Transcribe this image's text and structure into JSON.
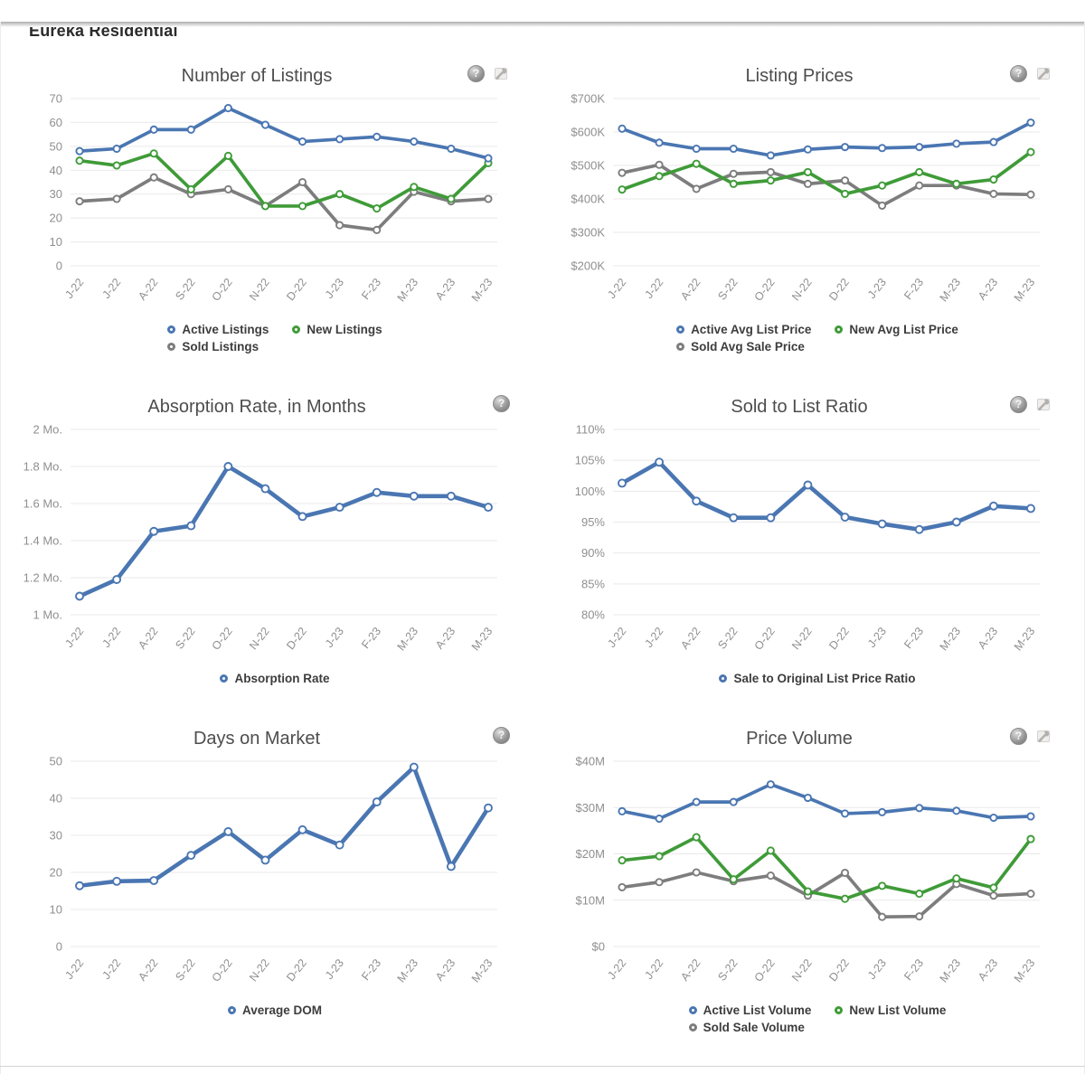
{
  "page": {
    "title": "Eureka Residential"
  },
  "icons": {
    "help_glyph": "?",
    "help_name": "help-icon",
    "tools_name": "tools-icon"
  },
  "colors": {
    "blue": "#4a76b2",
    "green": "#3f9b38",
    "gray": "#7d7d7d",
    "grid": "#e9e9e9",
    "tick_text": "#8f8f8f"
  },
  "chart_data": [
    {
      "type": "line",
      "title": "Number of Listings",
      "has_tools": true,
      "categories": [
        "J-22",
        "J-22",
        "A-22",
        "S-22",
        "O-22",
        "N-22",
        "D-22",
        "J-23",
        "F-23",
        "M-23",
        "A-23",
        "M-23"
      ],
      "ylim": [
        0,
        70
      ],
      "y_tick_values": [
        0,
        10,
        20,
        30,
        40,
        50,
        60,
        70
      ],
      "y_tick_labels": [
        "0",
        "10",
        "20",
        "30",
        "40",
        "50",
        "60",
        "70"
      ],
      "series": [
        {
          "name": "Active Listings",
          "color": "#4a76b2",
          "values": [
            48,
            49,
            57,
            57,
            66,
            59,
            52,
            53,
            54,
            52,
            49,
            45
          ]
        },
        {
          "name": "New Listings",
          "color": "#3f9b38",
          "values": [
            44,
            42,
            47,
            32,
            46,
            25,
            25,
            30,
            24,
            33,
            28,
            43
          ]
        },
        {
          "name": "Sold Listings",
          "color": "#7d7d7d",
          "values": [
            27,
            28,
            37,
            30,
            32,
            25,
            35,
            17,
            15,
            31,
            27,
            28
          ]
        }
      ]
    },
    {
      "type": "line",
      "title": "Listing Prices",
      "has_tools": true,
      "categories": [
        "J-22",
        "J-22",
        "A-22",
        "S-22",
        "O-22",
        "N-22",
        "D-22",
        "J-23",
        "F-23",
        "M-23",
        "A-23",
        "M-23"
      ],
      "ylim": [
        200,
        700
      ],
      "y_tick_values": [
        200,
        300,
        400,
        500,
        600,
        700
      ],
      "y_tick_labels": [
        "$200K",
        "$300K",
        "$400K",
        "$500K",
        "$600K",
        "$700K"
      ],
      "series": [
        {
          "name": "Active Avg List Price",
          "color": "#4a76b2",
          "values": [
            610,
            568,
            550,
            550,
            530,
            548,
            555,
            552,
            555,
            565,
            570,
            628
          ]
        },
        {
          "name": "New Avg List Price",
          "color": "#3f9b38",
          "values": [
            428,
            468,
            505,
            445,
            455,
            480,
            415,
            440,
            480,
            445,
            458,
            540
          ]
        },
        {
          "name": "Sold Avg Sale Price",
          "color": "#7d7d7d",
          "values": [
            478,
            502,
            430,
            475,
            480,
            445,
            455,
            380,
            440,
            440,
            415,
            413
          ]
        }
      ]
    },
    {
      "type": "line",
      "title": "Absorption Rate, in Months",
      "has_tools": false,
      "categories": [
        "J-22",
        "J-22",
        "A-22",
        "S-22",
        "O-22",
        "N-22",
        "D-22",
        "J-23",
        "F-23",
        "M-23",
        "A-23",
        "M-23"
      ],
      "ylim": [
        1,
        2
      ],
      "y_tick_values": [
        1,
        1.2,
        1.4,
        1.6,
        1.8,
        2
      ],
      "y_tick_labels": [
        "1 Mo.",
        "1.2 Mo.",
        "1.4 Mo.",
        "1.6 Mo.",
        "1.8 Mo.",
        "2 Mo."
      ],
      "series": [
        {
          "name": "Absorption Rate",
          "color": "#4a76b2",
          "values": [
            1.1,
            1.19,
            1.45,
            1.48,
            1.8,
            1.68,
            1.53,
            1.58,
            1.66,
            1.64,
            1.64,
            1.58
          ]
        }
      ]
    },
    {
      "type": "line",
      "title": "Sold to List Ratio",
      "has_tools": true,
      "categories": [
        "J-22",
        "J-22",
        "A-22",
        "S-22",
        "O-22",
        "N-22",
        "D-22",
        "J-23",
        "F-23",
        "M-23",
        "A-23",
        "M-23"
      ],
      "ylim": [
        80,
        110
      ],
      "y_tick_values": [
        80,
        85,
        90,
        95,
        100,
        105,
        110
      ],
      "y_tick_labels": [
        "80%",
        "85%",
        "90%",
        "95%",
        "100%",
        "105%",
        "110%"
      ],
      "series": [
        {
          "name": "Sale to Original List Price Ratio",
          "color": "#4a76b2",
          "values": [
            101.3,
            104.7,
            98.4,
            95.7,
            95.7,
            101.0,
            95.8,
            94.7,
            93.8,
            95.0,
            97.6,
            97.2
          ]
        }
      ]
    },
    {
      "type": "line",
      "title": "Days on Market",
      "has_tools": false,
      "categories": [
        "J-22",
        "J-22",
        "A-22",
        "S-22",
        "O-22",
        "N-22",
        "D-22",
        "J-23",
        "F-23",
        "M-23",
        "A-23",
        "M-23"
      ],
      "ylim": [
        0,
        50
      ],
      "y_tick_values": [
        0,
        10,
        20,
        30,
        40,
        50
      ],
      "y_tick_labels": [
        "0",
        "10",
        "20",
        "30",
        "40",
        "50"
      ],
      "series": [
        {
          "name": "Average DOM",
          "color": "#4a76b2",
          "values": [
            16.4,
            17.6,
            17.8,
            24.6,
            31.0,
            23.3,
            31.5,
            27.4,
            39.0,
            48.4,
            21.6,
            37.4
          ]
        }
      ]
    },
    {
      "type": "line",
      "title": "Price Volume",
      "has_tools": true,
      "categories": [
        "J-22",
        "J-22",
        "A-22",
        "S-22",
        "O-22",
        "N-22",
        "D-22",
        "J-23",
        "F-23",
        "M-23",
        "A-23",
        "M-23"
      ],
      "ylim": [
        0,
        40
      ],
      "y_tick_values": [
        0,
        10,
        20,
        30,
        40
      ],
      "y_tick_labels": [
        "$0",
        "$10M",
        "$20M",
        "$30M",
        "$40M"
      ],
      "series": [
        {
          "name": "Active List Volume",
          "color": "#4a76b2",
          "values": [
            29.2,
            27.6,
            31.2,
            31.2,
            35.0,
            32.1,
            28.7,
            29.0,
            29.9,
            29.3,
            27.8,
            28.1
          ]
        },
        {
          "name": "New List Volume",
          "color": "#3f9b38",
          "values": [
            18.6,
            19.5,
            23.6,
            14.5,
            20.7,
            11.9,
            10.3,
            13.1,
            11.4,
            14.7,
            12.7,
            23.2
          ]
        },
        {
          "name": "Sold Sale Volume",
          "color": "#7d7d7d",
          "values": [
            12.8,
            13.9,
            16.0,
            14.1,
            15.3,
            11.0,
            15.9,
            6.4,
            6.5,
            13.5,
            11.0,
            11.4
          ]
        }
      ]
    }
  ]
}
